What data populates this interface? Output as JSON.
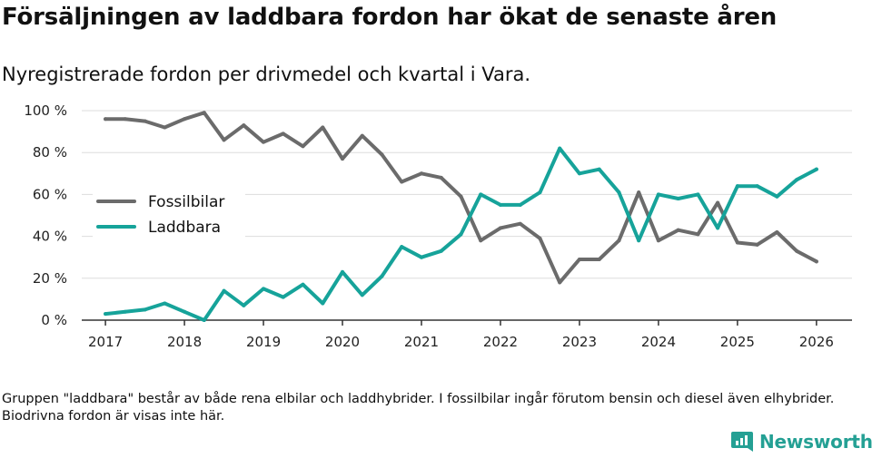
{
  "header": {
    "title": "Försäljningen av laddbara fordon har ökat de senaste åren",
    "subtitle": "Nyregistrerade fordon per drivmedel och kvartal i Vara."
  },
  "footer": {
    "note": "Gruppen \"laddbara\" består av både rena elbilar och laddhybrider. I fossilbilar ingår förutom bensin och diesel även elhybrider. Biodrivna fordon är visas inte här.",
    "brand": "Newsworthy"
  },
  "colors": {
    "fossil": "#6b6b6b",
    "laddbara": "#16a39a",
    "grid": "#dddddd",
    "axis": "#333333",
    "brand": "#24a094"
  },
  "chart_data": {
    "type": "line",
    "title": "Försäljningen av laddbara fordon har ökat de senaste åren",
    "subtitle": "Nyregistrerade fordon per drivmedel och kvartal i Vara.",
    "xlabel": "",
    "ylabel": "",
    "xlim": [
      2016.7,
      2026.45
    ],
    "ylim": [
      0,
      100
    ],
    "x_ticks": [
      2017,
      2018,
      2019,
      2020,
      2021,
      2022,
      2023,
      2024,
      2025,
      2026
    ],
    "x_tick_labels": [
      "2017",
      "2018",
      "2019",
      "2020",
      "2021",
      "2022",
      "2023",
      "2024",
      "2025",
      "2026"
    ],
    "y_ticks": [
      0,
      20,
      40,
      60,
      80,
      100
    ],
    "y_tick_labels": [
      "0 %",
      "20 %",
      "40 %",
      "60 %",
      "80 %",
      "100 %"
    ],
    "grid": true,
    "legend_position": "middle-left",
    "x": [
      2017.0,
      2017.25,
      2017.5,
      2017.75,
      2018.0,
      2018.25,
      2018.5,
      2018.75,
      2019.0,
      2019.25,
      2019.5,
      2019.75,
      2020.0,
      2020.25,
      2020.5,
      2020.75,
      2021.0,
      2021.25,
      2021.5,
      2021.75,
      2022.0,
      2022.25,
      2022.5,
      2022.75,
      2023.0,
      2023.25,
      2023.5,
      2023.75,
      2024.0,
      2024.25,
      2024.5,
      2024.75,
      2025.0,
      2025.25,
      2025.5,
      2025.75,
      2026.0
    ],
    "series": [
      {
        "name": "Fossilbilar",
        "color": "#6b6b6b",
        "values": [
          96,
          96,
          95,
          92,
          96,
          99,
          86,
          93,
          85,
          89,
          83,
          92,
          77,
          88,
          79,
          66,
          70,
          68,
          59,
          38,
          44,
          46,
          39,
          18,
          29,
          29,
          38,
          61,
          38,
          43,
          41,
          56,
          37,
          36,
          42,
          33,
          28
        ]
      },
      {
        "name": "Laddbara",
        "color": "#16a39a",
        "values": [
          3,
          4,
          5,
          8,
          4,
          0,
          14,
          7,
          15,
          11,
          17,
          8,
          23,
          12,
          21,
          35,
          30,
          33,
          41,
          60,
          55,
          55,
          61,
          82,
          70,
          72,
          61,
          38,
          60,
          58,
          60,
          44,
          64,
          64,
          59,
          67,
          72
        ]
      }
    ]
  }
}
